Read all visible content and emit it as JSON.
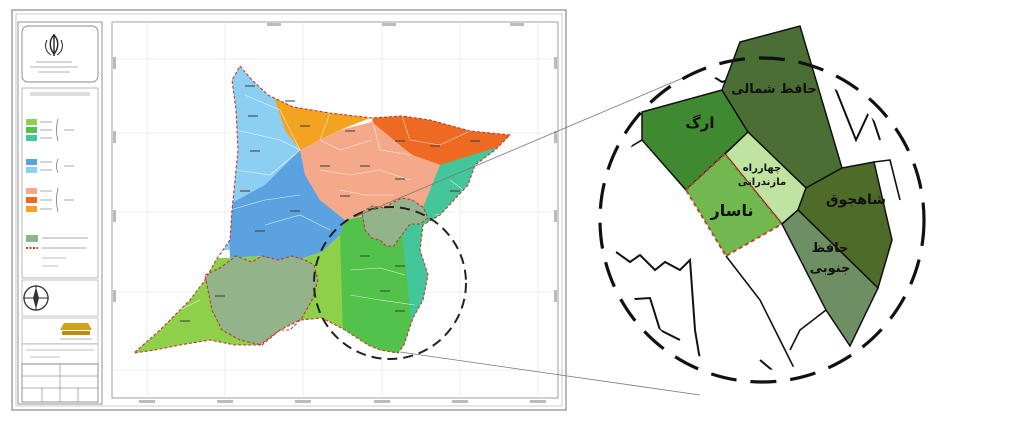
{
  "zoom_labels": {
    "arg": "ارگ",
    "hafez_shomali": "حافظ شمالی",
    "chaharrah_1": "چهارراه",
    "chaharrah_2": "مازندرانی",
    "nasar": "ناسار",
    "shahjough": "شاهجوق",
    "hafez_jonoubi_1": "حافظ",
    "hafez_jonoubi_2": "جنوبی"
  },
  "colors": {
    "arg": "#3f8a30",
    "hafez_shomali": "#4a6e34",
    "chaharrah": "#bfe3a0",
    "nasar": "#71b84f",
    "shahjough": "#4f6b2a",
    "hafez_jonoubi": "#6e8f63",
    "dashed_circle": "#222222",
    "selection_border": "#c0392b",
    "map_light_blue": "#8ccff2",
    "map_blue": "#5aa3e0",
    "map_orange": "#f3a31f",
    "map_red_orange": "#ee6a22",
    "map_salmon": "#f4a98b",
    "map_light_green": "#8fd04a",
    "map_green": "#52c24a",
    "map_teal": "#43c79a",
    "map_grey_green": "#93b48a"
  },
  "icons": [
    "emblem-icon",
    "north-arrow-icon",
    "publisher-logo-icon"
  ]
}
